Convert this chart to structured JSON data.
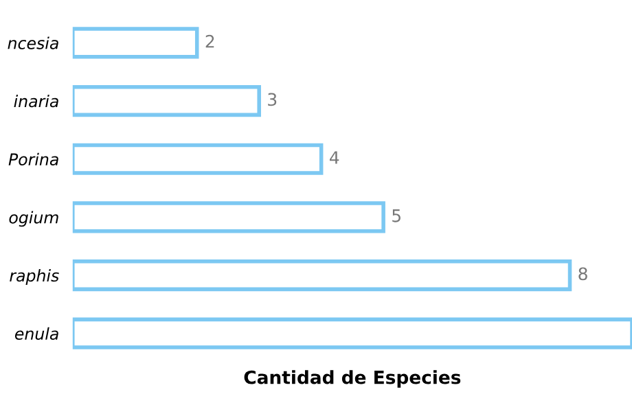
{
  "chart_data": {
    "type": "bar",
    "orientation": "horizontal",
    "xlabel": "Cantidad de Especies",
    "categories": [
      "ncesia",
      "inaria",
      "Porina",
      "ogium",
      "raphis",
      "enula"
    ],
    "values": [
      2,
      3,
      4,
      5,
      8,
      9
    ],
    "value_labels": [
      "2",
      "3",
      "4",
      "5",
      "8",
      null
    ],
    "color": "#7cc8f2",
    "xlim": [
      0,
      9
    ],
    "tick_labels": "y",
    "grid": false,
    "legend": false
  }
}
